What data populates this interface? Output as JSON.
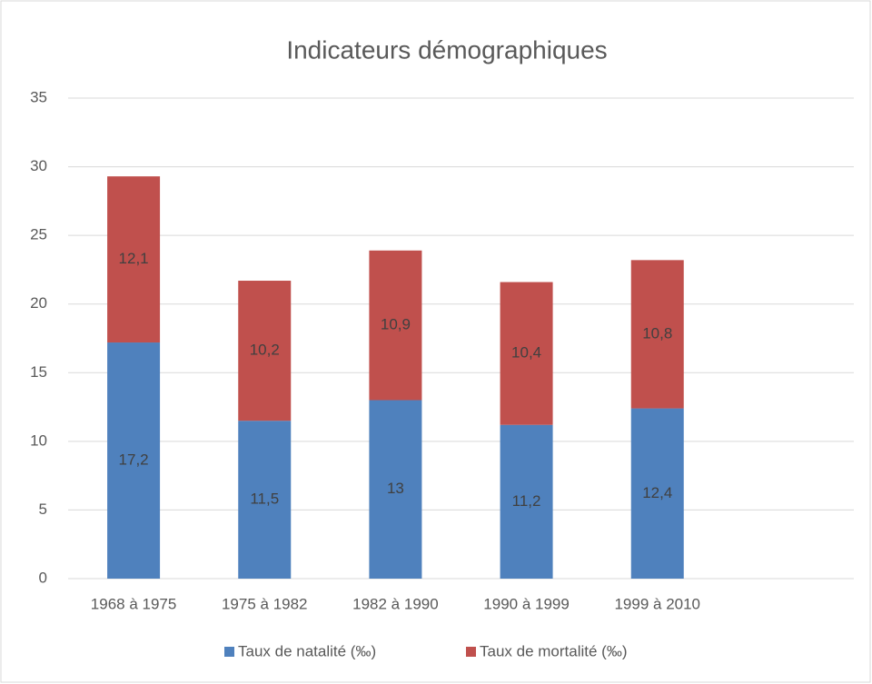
{
  "chart_data": {
    "type": "stacked_bar",
    "title": "Indicateurs démographiques",
    "categories": [
      "1968 à 1975",
      "1975 à 1982",
      "1982 à 1990",
      "1990 à 1999",
      "1999 à 2010",
      null
    ],
    "series": [
      {
        "name": "Taux de natalité (‰)",
        "color": "#4f81bd",
        "values": [
          17.2,
          11.5,
          13,
          11.2,
          12.4,
          null
        ],
        "value_labels": [
          "17,2",
          "11,5",
          "13",
          "11,2",
          "12,4",
          null
        ]
      },
      {
        "name": "Taux de mortalité (‰)",
        "color": "#c0504d",
        "values": [
          12.1,
          10.2,
          10.9,
          10.4,
          10.8,
          null
        ],
        "value_labels": [
          "12,1",
          "10,2",
          "10,9",
          "10,4",
          "10,8",
          null
        ]
      }
    ],
    "ylim": [
      0,
      35
    ],
    "yticks": [
      0,
      5,
      10,
      15,
      20,
      25,
      30,
      35
    ],
    "grid": true,
    "legend": "bottom"
  }
}
